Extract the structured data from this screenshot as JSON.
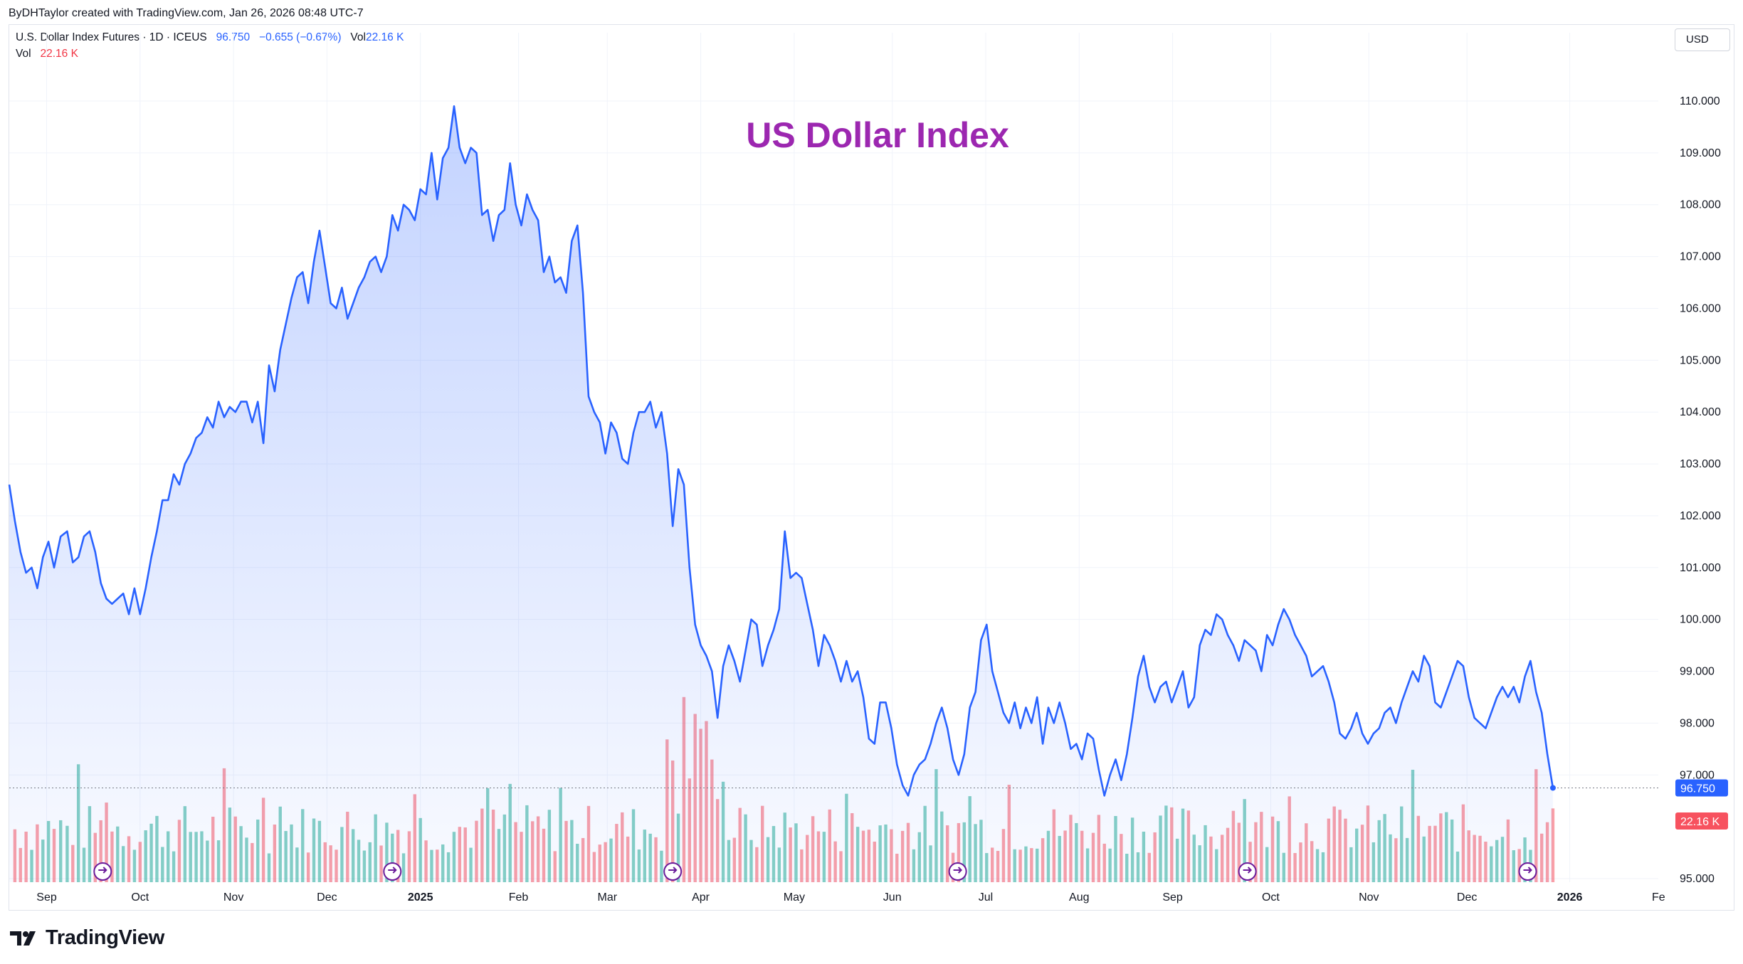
{
  "header": {
    "credit": "ByDHTaylor created with TradingView.com, Jan 26, 2026 08:48 UTC-7",
    "symbol": "U.S. Dollar Index Futures · 1D · ICEUS",
    "last": "96.750",
    "change": "−0.655 (−0.67%)",
    "vol_label": "Vol",
    "vol_value": "22.16 K",
    "vol2_label": "Vol",
    "vol2_value": "22.16 K",
    "currency": "USD"
  },
  "brand": "TradingView",
  "chart_data": {
    "type": "area",
    "title": "US Dollar Index",
    "title_color": "#9c27b0",
    "line_color": "#2962ff",
    "ylim": [
      95.0,
      110.5
    ],
    "y_ticks": [
      "110.000",
      "109.000",
      "108.000",
      "107.000",
      "106.000",
      "105.000",
      "104.000",
      "103.000",
      "102.000",
      "101.000",
      "100.000",
      "99.000",
      "98.000",
      "97.000",
      "95.000"
    ],
    "y_tick_values": [
      110,
      109,
      108,
      107,
      106,
      105,
      104,
      103,
      102,
      101,
      100,
      99,
      98,
      97,
      95
    ],
    "x_ticks": [
      {
        "label": "Sep",
        "value": 0.4,
        "bold": false
      },
      {
        "label": "Oct",
        "value": 1.4,
        "bold": false
      },
      {
        "label": "Nov",
        "value": 2.4,
        "bold": false
      },
      {
        "label": "Dec",
        "value": 3.4,
        "bold": false
      },
      {
        "label": "2025",
        "value": 4.4,
        "bold": true
      },
      {
        "label": "Feb",
        "value": 5.45,
        "bold": false
      },
      {
        "label": "Mar",
        "value": 6.4,
        "bold": false
      },
      {
        "label": "Apr",
        "value": 7.4,
        "bold": false
      },
      {
        "label": "May",
        "value": 8.4,
        "bold": false
      },
      {
        "label": "Jun",
        "value": 9.45,
        "bold": false
      },
      {
        "label": "Jul",
        "value": 10.45,
        "bold": false
      },
      {
        "label": "Aug",
        "value": 11.45,
        "bold": false
      },
      {
        "label": "Sep",
        "value": 12.45,
        "bold": false
      },
      {
        "label": "Oct",
        "value": 13.5,
        "bold": false
      },
      {
        "label": "Nov",
        "value": 14.55,
        "bold": false
      },
      {
        "label": "Dec",
        "value": 15.6,
        "bold": false
      },
      {
        "label": "2026",
        "value": 16.7,
        "bold": true
      },
      {
        "label": "Fe",
        "value": 17.65,
        "bold": false
      }
    ],
    "xlim": [
      0,
      17.8
    ],
    "last_price": 96.75,
    "last_price_label": "96.750",
    "vol_label_value": "22.16 K",
    "series": [
      {
        "name": "U.S. Dollar Index Futures",
        "points": [
          [
            0.0,
            102.6
          ],
          [
            0.06,
            101.9
          ],
          [
            0.12,
            101.3
          ],
          [
            0.18,
            100.9
          ],
          [
            0.24,
            101.0
          ],
          [
            0.3,
            100.6
          ],
          [
            0.36,
            101.2
          ],
          [
            0.42,
            101.5
          ],
          [
            0.48,
            101.0
          ],
          [
            0.55,
            101.6
          ],
          [
            0.62,
            101.7
          ],
          [
            0.68,
            101.1
          ],
          [
            0.74,
            101.2
          ],
          [
            0.8,
            101.6
          ],
          [
            0.86,
            101.7
          ],
          [
            0.92,
            101.3
          ],
          [
            0.98,
            100.7
          ],
          [
            1.04,
            100.4
          ],
          [
            1.1,
            100.3
          ],
          [
            1.16,
            100.4
          ],
          [
            1.22,
            100.5
          ],
          [
            1.28,
            100.1
          ],
          [
            1.34,
            100.6
          ],
          [
            1.4,
            100.1
          ],
          [
            1.46,
            100.6
          ],
          [
            1.52,
            101.2
          ],
          [
            1.58,
            101.7
          ],
          [
            1.64,
            102.3
          ],
          [
            1.7,
            102.3
          ],
          [
            1.76,
            102.8
          ],
          [
            1.82,
            102.6
          ],
          [
            1.88,
            103.0
          ],
          [
            1.94,
            103.2
          ],
          [
            2.0,
            103.5
          ],
          [
            2.06,
            103.6
          ],
          [
            2.12,
            103.9
          ],
          [
            2.18,
            103.7
          ],
          [
            2.24,
            104.2
          ],
          [
            2.3,
            103.9
          ],
          [
            2.36,
            104.1
          ],
          [
            2.42,
            104.0
          ],
          [
            2.48,
            104.2
          ],
          [
            2.54,
            104.2
          ],
          [
            2.6,
            103.8
          ],
          [
            2.66,
            104.2
          ],
          [
            2.72,
            103.4
          ],
          [
            2.78,
            104.9
          ],
          [
            2.84,
            104.4
          ],
          [
            2.9,
            105.2
          ],
          [
            2.96,
            105.7
          ],
          [
            3.02,
            106.2
          ],
          [
            3.08,
            106.6
          ],
          [
            3.14,
            106.7
          ],
          [
            3.2,
            106.1
          ],
          [
            3.26,
            106.9
          ],
          [
            3.32,
            107.5
          ],
          [
            3.38,
            106.8
          ],
          [
            3.44,
            106.1
          ],
          [
            3.5,
            106.0
          ],
          [
            3.56,
            106.4
          ],
          [
            3.62,
            105.8
          ],
          [
            3.68,
            106.1
          ],
          [
            3.74,
            106.4
          ],
          [
            3.8,
            106.6
          ],
          [
            3.86,
            106.9
          ],
          [
            3.92,
            107.0
          ],
          [
            3.98,
            106.7
          ],
          [
            4.04,
            107.0
          ],
          [
            4.1,
            107.8
          ],
          [
            4.16,
            107.5
          ],
          [
            4.22,
            108.0
          ],
          [
            4.28,
            107.9
          ],
          [
            4.34,
            107.7
          ],
          [
            4.4,
            108.3
          ],
          [
            4.46,
            108.2
          ],
          [
            4.52,
            109.0
          ],
          [
            4.58,
            108.1
          ],
          [
            4.64,
            108.9
          ],
          [
            4.7,
            109.1
          ],
          [
            4.76,
            109.9
          ],
          [
            4.82,
            109.1
          ],
          [
            4.88,
            108.8
          ],
          [
            4.94,
            109.1
          ],
          [
            5.0,
            109.0
          ],
          [
            5.06,
            107.8
          ],
          [
            5.12,
            107.9
          ],
          [
            5.18,
            107.3
          ],
          [
            5.24,
            107.8
          ],
          [
            5.3,
            107.9
          ],
          [
            5.36,
            108.8
          ],
          [
            5.42,
            108.0
          ],
          [
            5.48,
            107.6
          ],
          [
            5.54,
            108.2
          ],
          [
            5.6,
            107.9
          ],
          [
            5.66,
            107.7
          ],
          [
            5.72,
            106.7
          ],
          [
            5.78,
            107.0
          ],
          [
            5.84,
            106.5
          ],
          [
            5.9,
            106.6
          ],
          [
            5.96,
            106.3
          ],
          [
            6.02,
            107.3
          ],
          [
            6.08,
            107.6
          ],
          [
            6.14,
            106.3
          ],
          [
            6.2,
            104.3
          ],
          [
            6.26,
            104.0
          ],
          [
            6.32,
            103.8
          ],
          [
            6.38,
            103.2
          ],
          [
            6.44,
            103.8
          ],
          [
            6.5,
            103.6
          ],
          [
            6.56,
            103.1
          ],
          [
            6.62,
            103.0
          ],
          [
            6.68,
            103.6
          ],
          [
            6.74,
            104.0
          ],
          [
            6.8,
            104.0
          ],
          [
            6.86,
            104.2
          ],
          [
            6.92,
            103.7
          ],
          [
            6.98,
            104.0
          ],
          [
            7.04,
            103.2
          ],
          [
            7.1,
            101.8
          ],
          [
            7.16,
            102.9
          ],
          [
            7.22,
            102.6
          ],
          [
            7.28,
            101.0
          ],
          [
            7.34,
            99.9
          ],
          [
            7.4,
            99.5
          ],
          [
            7.46,
            99.3
          ],
          [
            7.52,
            99.0
          ],
          [
            7.58,
            98.1
          ],
          [
            7.64,
            99.1
          ],
          [
            7.7,
            99.5
          ],
          [
            7.76,
            99.2
          ],
          [
            7.82,
            98.8
          ],
          [
            7.88,
            99.4
          ],
          [
            7.94,
            100.0
          ],
          [
            8.0,
            99.9
          ],
          [
            8.06,
            99.1
          ],
          [
            8.12,
            99.5
          ],
          [
            8.18,
            99.8
          ],
          [
            8.24,
            100.2
          ],
          [
            8.3,
            101.7
          ],
          [
            8.36,
            100.8
          ],
          [
            8.42,
            100.9
          ],
          [
            8.48,
            100.8
          ],
          [
            8.54,
            100.3
          ],
          [
            8.6,
            99.8
          ],
          [
            8.66,
            99.1
          ],
          [
            8.72,
            99.7
          ],
          [
            8.78,
            99.5
          ],
          [
            8.84,
            99.2
          ],
          [
            8.9,
            98.8
          ],
          [
            8.96,
            99.2
          ],
          [
            9.02,
            98.8
          ],
          [
            9.08,
            99.0
          ],
          [
            9.14,
            98.5
          ],
          [
            9.2,
            97.7
          ],
          [
            9.26,
            97.6
          ],
          [
            9.32,
            98.4
          ],
          [
            9.38,
            98.4
          ],
          [
            9.44,
            97.9
          ],
          [
            9.5,
            97.2
          ],
          [
            9.56,
            96.8
          ],
          [
            9.62,
            96.6
          ],
          [
            9.68,
            97.0
          ],
          [
            9.74,
            97.2
          ],
          [
            9.8,
            97.3
          ],
          [
            9.86,
            97.6
          ],
          [
            9.92,
            98.0
          ],
          [
            9.98,
            98.3
          ],
          [
            10.04,
            97.9
          ],
          [
            10.1,
            97.3
          ],
          [
            10.16,
            97.0
          ],
          [
            10.22,
            97.4
          ],
          [
            10.28,
            98.3
          ],
          [
            10.34,
            98.6
          ],
          [
            10.4,
            99.6
          ],
          [
            10.46,
            99.9
          ],
          [
            10.52,
            99.0
          ],
          [
            10.58,
            98.6
          ],
          [
            10.64,
            98.2
          ],
          [
            10.7,
            98.0
          ],
          [
            10.76,
            98.4
          ],
          [
            10.82,
            97.9
          ],
          [
            10.88,
            98.3
          ],
          [
            10.94,
            98.0
          ],
          [
            11.0,
            98.5
          ],
          [
            11.06,
            97.6
          ],
          [
            11.12,
            98.3
          ],
          [
            11.18,
            98.0
          ],
          [
            11.24,
            98.4
          ],
          [
            11.3,
            98.0
          ],
          [
            11.36,
            97.5
          ],
          [
            11.42,
            97.6
          ],
          [
            11.48,
            97.3
          ],
          [
            11.54,
            97.8
          ],
          [
            11.6,
            97.7
          ],
          [
            11.66,
            97.1
          ],
          [
            11.72,
            96.6
          ],
          [
            11.78,
            97.0
          ],
          [
            11.84,
            97.3
          ],
          [
            11.9,
            96.9
          ],
          [
            11.96,
            97.4
          ],
          [
            12.02,
            98.1
          ],
          [
            12.08,
            98.9
          ],
          [
            12.14,
            99.3
          ],
          [
            12.2,
            98.7
          ],
          [
            12.26,
            98.4
          ],
          [
            12.32,
            98.7
          ],
          [
            12.38,
            98.8
          ],
          [
            12.44,
            98.4
          ],
          [
            12.5,
            98.7
          ],
          [
            12.56,
            99.0
          ],
          [
            12.62,
            98.3
          ],
          [
            12.68,
            98.5
          ],
          [
            12.74,
            99.5
          ],
          [
            12.8,
            99.8
          ],
          [
            12.86,
            99.7
          ],
          [
            12.92,
            100.1
          ],
          [
            12.98,
            100.0
          ],
          [
            13.04,
            99.7
          ],
          [
            13.1,
            99.5
          ],
          [
            13.16,
            99.2
          ],
          [
            13.22,
            99.6
          ],
          [
            13.28,
            99.5
          ],
          [
            13.34,
            99.4
          ],
          [
            13.4,
            99.0
          ],
          [
            13.46,
            99.7
          ],
          [
            13.52,
            99.5
          ],
          [
            13.58,
            99.9
          ],
          [
            13.64,
            100.2
          ],
          [
            13.7,
            100.0
          ],
          [
            13.76,
            99.7
          ],
          [
            13.82,
            99.5
          ],
          [
            13.88,
            99.3
          ],
          [
            13.94,
            98.9
          ],
          [
            14.0,
            99.0
          ],
          [
            14.06,
            99.1
          ],
          [
            14.12,
            98.8
          ],
          [
            14.18,
            98.4
          ],
          [
            14.24,
            97.8
          ],
          [
            14.3,
            97.7
          ],
          [
            14.36,
            97.9
          ],
          [
            14.42,
            98.2
          ],
          [
            14.48,
            97.8
          ],
          [
            14.54,
            97.6
          ],
          [
            14.6,
            97.8
          ],
          [
            14.66,
            97.9
          ],
          [
            14.72,
            98.2
          ],
          [
            14.78,
            98.3
          ],
          [
            14.84,
            98.0
          ],
          [
            14.9,
            98.4
          ],
          [
            14.96,
            98.7
          ],
          [
            15.02,
            99.0
          ],
          [
            15.08,
            98.8
          ],
          [
            15.14,
            99.3
          ],
          [
            15.2,
            99.1
          ],
          [
            15.26,
            98.4
          ],
          [
            15.32,
            98.3
          ],
          [
            15.38,
            98.6
          ],
          [
            15.44,
            98.9
          ],
          [
            15.5,
            99.2
          ],
          [
            15.56,
            99.1
          ],
          [
            15.62,
            98.5
          ],
          [
            15.68,
            98.1
          ],
          [
            15.74,
            98.0
          ],
          [
            15.8,
            97.9
          ],
          [
            15.86,
            98.2
          ],
          [
            15.92,
            98.5
          ],
          [
            15.98,
            98.7
          ],
          [
            16.04,
            98.5
          ],
          [
            16.1,
            98.7
          ],
          [
            16.16,
            98.4
          ],
          [
            16.22,
            98.9
          ],
          [
            16.28,
            99.2
          ],
          [
            16.34,
            98.6
          ],
          [
            16.4,
            98.2
          ],
          [
            16.46,
            97.4
          ],
          [
            16.52,
            96.75
          ]
        ]
      }
    ],
    "volume": {
      "up_color": "#22ab94",
      "down_color": "#f7525f",
      "note": "volume histogram bars along bottom of the price pane"
    }
  }
}
